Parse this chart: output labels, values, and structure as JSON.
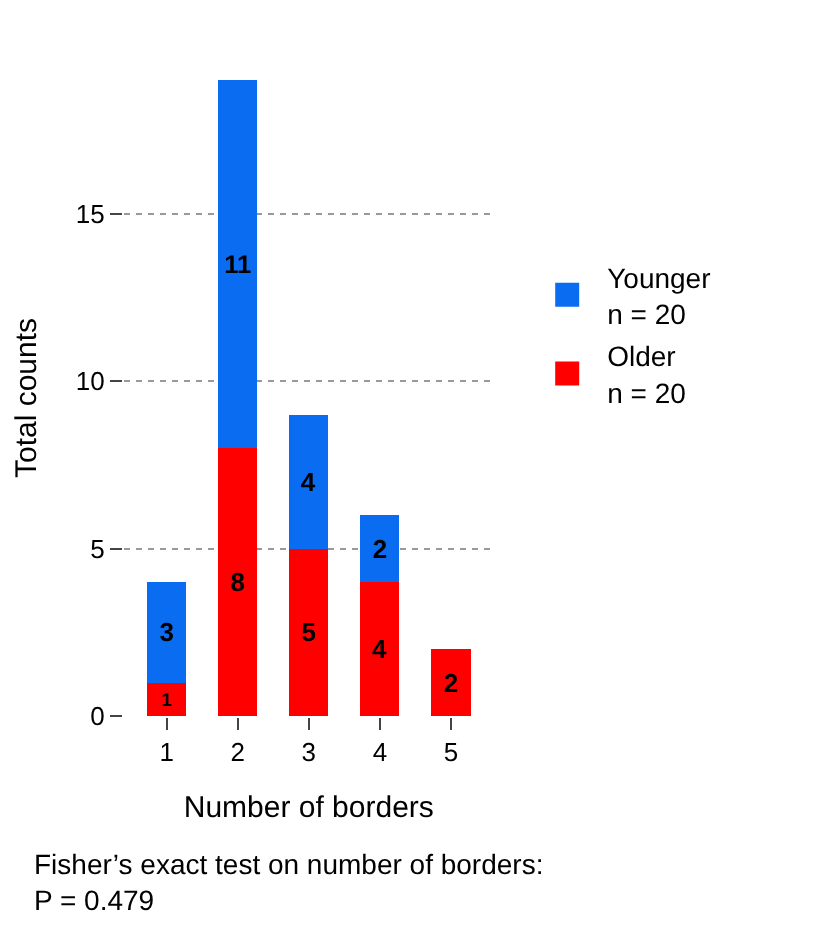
{
  "chart_data": {
    "type": "bar",
    "stacked": true,
    "categories": [
      "1",
      "2",
      "3",
      "4",
      "5"
    ],
    "series": [
      {
        "name": "Older\nn = 20",
        "color": "#ff0000",
        "values": [
          1,
          8,
          5,
          4,
          2
        ],
        "value_labels": [
          "1",
          "8",
          "5",
          "4",
          "2"
        ]
      },
      {
        "name": "Younger\nn = 20",
        "color": "#0a6cf0",
        "values": [
          3,
          11,
          4,
          2,
          0
        ],
        "value_labels": [
          "3",
          "11",
          "4",
          "2",
          null
        ]
      }
    ],
    "ylim": [
      0,
      19
    ],
    "yticks": [
      0,
      5,
      10,
      15
    ],
    "grid": "y",
    "legend": "right",
    "xlabel": "Number of borders",
    "ylabel": "Total counts",
    "annotations": [
      "Fisher’s exact test on number of borders:\nP = 0.479"
    ]
  }
}
